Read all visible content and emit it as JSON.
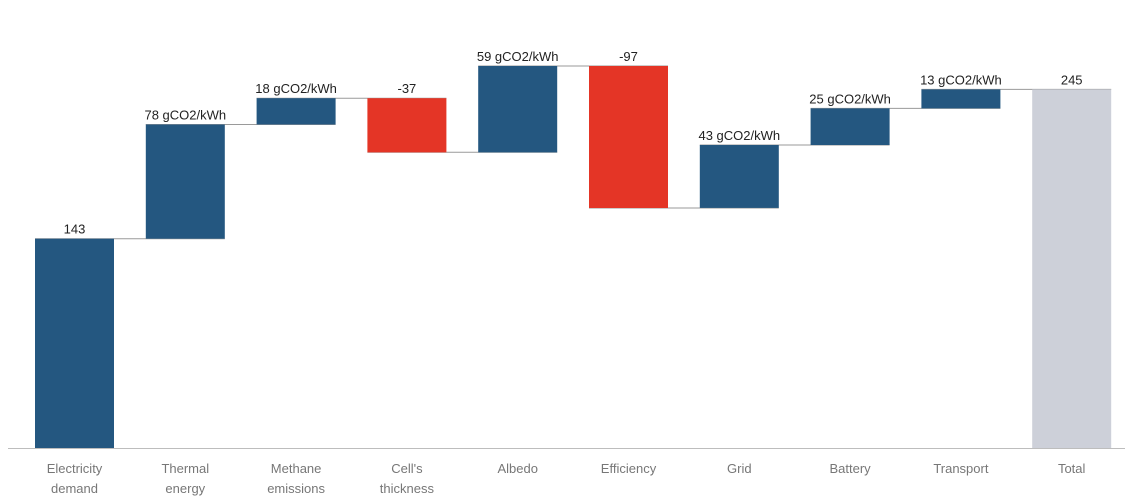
{
  "chart_data": {
    "type": "waterfall",
    "title": "",
    "xlabel": "",
    "ylabel": "",
    "ylim": [
      0,
      290
    ],
    "grid": false,
    "legend": "none",
    "categories": [
      [
        "Electricity",
        "demand"
      ],
      [
        "Thermal",
        "energy"
      ],
      [
        "Methane",
        "emissions"
      ],
      [
        "Cell's",
        "thickness"
      ],
      [
        "Albedo"
      ],
      [
        "Efficiency"
      ],
      [
        "Grid"
      ],
      [
        "Battery"
      ],
      [
        "Transport"
      ],
      [
        "Total"
      ]
    ],
    "values": [
      143,
      78,
      18,
      -37,
      59,
      -97,
      43,
      25,
      13,
      245
    ],
    "kinds": [
      "increase",
      "increase",
      "increase",
      "decrease",
      "increase",
      "decrease",
      "increase",
      "increase",
      "increase",
      "total"
    ],
    "data_labels": [
      "143",
      "78 gCO2/kWh",
      "18 gCO2/kWh",
      "-37",
      "59 gCO2/kWh",
      "-97",
      "43 gCO2/kWh",
      "25 gCO2/kWh",
      "13 gCO2/kWh",
      "245"
    ],
    "colors": {
      "increase": "#245780",
      "decrease": "#e43526",
      "total": "#cdd0d9",
      "connector": "#9a9a9a",
      "axis": "#bdbdbd"
    }
  }
}
